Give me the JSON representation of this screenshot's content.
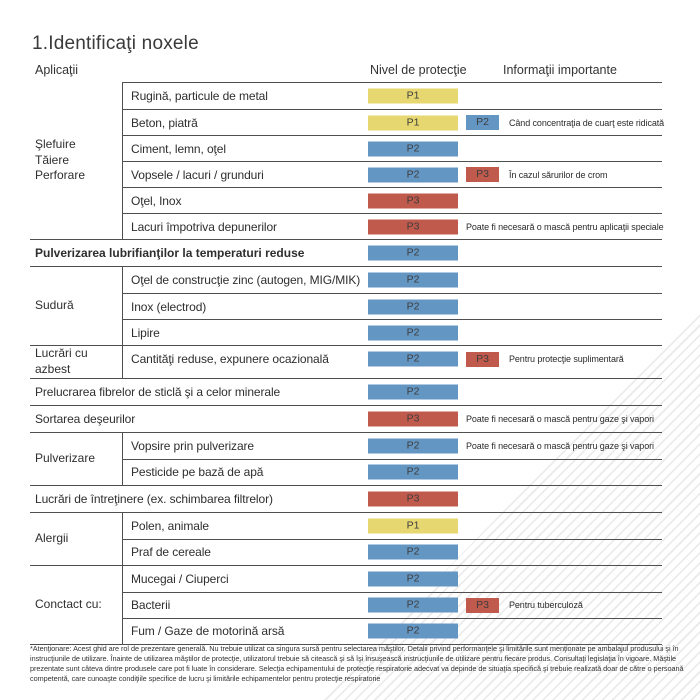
{
  "page": {
    "title": "1.Identificaţi noxele",
    "headers": {
      "applications": "Aplicaţii",
      "protection_level": "Nivel de protecţie",
      "important_info": "Informaţii importante"
    },
    "footnote": "*Atenţionare: Acest ghid are rol de prezentare generală. Nu trebuie utilizat ca singura sursă pentru selectarea măştilor. Detalii privind performanţele şi limitările sunt menţionate pe ambalajul produsului şi în instrucţiunile de utilizare. Înainte de utilizarea măştilor de protecţie, utilizatorul trebuie să citească şi să îşi însuşească instrucţiunile de utilizare pentru fiecare produs. Consultaţi legislaţia în vigoare. Măştile prezentate sunt câteva dintre produsele care pot fi luate în considerare. Selecţia echipamentului de protecţie respiratorie adecvat va depinde de situaţia specifică şi trebuie realizată doar de către o persoană competentă, care cunoaşte condiţiile specifice de lucru şi limitările echipamentelor pentru protecţie respiratorie"
  },
  "colors": {
    "p1_yellow": "#e6d770",
    "p2_blue": "#6496c3",
    "p3_red": "#c05a4d",
    "table_line": "#4f4f4f"
  },
  "table": {
    "groups": [
      {
        "label": "Şlefuire\nTăiere\nPerforare",
        "items": [
          {
            "text": "Rugină, particule de metal",
            "badges": [
              {
                "label": "P1",
                "level": "p1"
              }
            ],
            "note": ""
          },
          {
            "text": "Beton, piatră",
            "badges": [
              {
                "label": "P1",
                "level": "p1"
              },
              {
                "label": "P2",
                "level": "p2"
              }
            ],
            "note": "Când concentraţia de cuarţ este ridicată"
          },
          {
            "text": "Ciment, lemn, oţel",
            "badges": [
              {
                "label": "P2",
                "level": "p2"
              }
            ],
            "note": ""
          },
          {
            "text": "Vopsele / lacuri / grunduri",
            "badges": [
              {
                "label": "P2",
                "level": "p2"
              },
              {
                "label": "P3",
                "level": "p3"
              }
            ],
            "note": "În cazul sărurilor de crom"
          },
          {
            "text": "Oţel, Inox",
            "badges": [
              {
                "label": "P3",
                "level": "p3"
              }
            ],
            "note": ""
          },
          {
            "text": "Lacuri împotriva depunerilor",
            "badges": [
              {
                "label": "P3",
                "level": "p3"
              }
            ],
            "note": "Poate fi necesară o mască pentru aplicaţii speciale"
          }
        ]
      },
      {
        "label": "",
        "items": [
          {
            "text": "Pulverizarea lubrifianţilor la temperaturi reduse",
            "bold": true,
            "badges": [
              {
                "label": "P2",
                "level": "p2"
              }
            ],
            "note": ""
          }
        ]
      },
      {
        "label": "Sudură",
        "items": [
          {
            "text": "Oţel de construcţie zinc (autogen, MIG/MIK)",
            "badges": [
              {
                "label": "P2",
                "level": "p2"
              }
            ],
            "note": ""
          },
          {
            "text": "Inox (electrod)",
            "badges": [
              {
                "label": "P2",
                "level": "p2"
              }
            ],
            "note": ""
          },
          {
            "text": "Lipire",
            "badges": [
              {
                "label": "P2",
                "level": "p2"
              }
            ],
            "note": ""
          }
        ]
      },
      {
        "label": "Lucrări cu azbest",
        "items": [
          {
            "text": "Cantităţi reduse, expunere ocazională",
            "badges": [
              {
                "label": "P2",
                "level": "p2"
              },
              {
                "label": "P3",
                "level": "p3"
              }
            ],
            "note": "Pentru protecţie suplimentară"
          }
        ]
      },
      {
        "label": "",
        "items": [
          {
            "text": "Prelucrarea fibrelor de sticlă şi a celor minerale",
            "badges": [
              {
                "label": "P2",
                "level": "p2"
              }
            ],
            "note": ""
          }
        ]
      },
      {
        "label": "",
        "items": [
          {
            "text": "Sortarea deşeurilor",
            "badges": [
              {
                "label": "P3",
                "level": "p3"
              }
            ],
            "note": "Poate fi necesară o mască pentru gaze şi vapori"
          }
        ]
      },
      {
        "label": "Pulverizare",
        "items": [
          {
            "text": "Vopsire prin pulverizare",
            "badges": [
              {
                "label": "P2",
                "level": "p2"
              }
            ],
            "note": "Poate fi necesară o mască pentru gaze şi vapori"
          },
          {
            "text": "Pesticide pe bază de apă",
            "badges": [
              {
                "label": "P2",
                "level": "p2"
              }
            ],
            "note": ""
          }
        ]
      },
      {
        "label": "",
        "items": [
          {
            "text": "Lucrări de întreţinere (ex. schimbarea filtrelor)",
            "badges": [
              {
                "label": "P3",
                "level": "p3"
              }
            ],
            "note": ""
          }
        ]
      },
      {
        "label": "Alergii",
        "items": [
          {
            "text": "Polen, animale",
            "badges": [
              {
                "label": "P1",
                "level": "p1"
              }
            ],
            "note": ""
          },
          {
            "text": "Praf de cereale",
            "badges": [
              {
                "label": "P2",
                "level": "p2"
              }
            ],
            "note": ""
          }
        ]
      },
      {
        "label": "Conctact cu:",
        "items": [
          {
            "text": "Mucegai / Ciuperci",
            "badges": [
              {
                "label": "P2",
                "level": "p2"
              }
            ],
            "note": ""
          },
          {
            "text": "Bacterii",
            "badges": [
              {
                "label": "P2",
                "level": "p2"
              },
              {
                "label": "P3",
                "level": "p3"
              }
            ],
            "note": "Pentru tuberculoză"
          },
          {
            "text": "Fum / Gaze de motorină arsă",
            "badges": [
              {
                "label": "P2",
                "level": "p2"
              }
            ],
            "note": ""
          }
        ]
      }
    ]
  }
}
